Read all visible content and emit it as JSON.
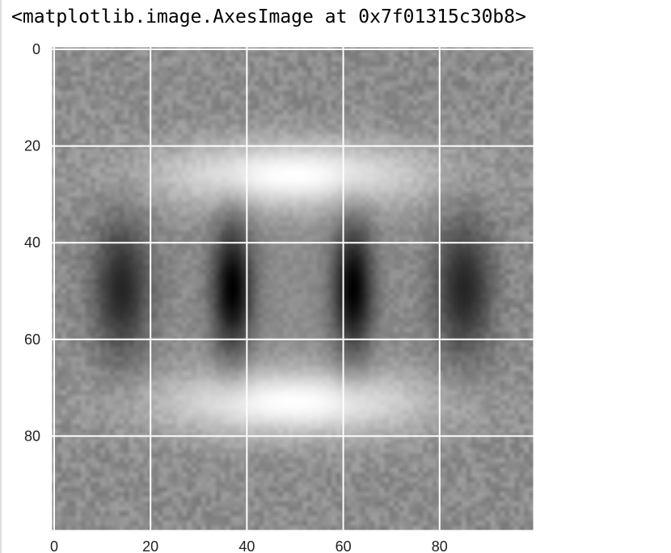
{
  "output_text": "<matplotlib.image.AxesImage at 0x7f01315c30b8>",
  "chart_data": {
    "type": "heatmap",
    "title": "",
    "xlabel": "",
    "ylabel": "",
    "grid": true,
    "colormap": "gray",
    "image_size": [
      100,
      100
    ],
    "xlim": [
      -0.5,
      99.5
    ],
    "ylim": [
      99.5,
      -0.5
    ],
    "y_axis_inverted": true,
    "x_ticks": [
      0,
      20,
      40,
      60,
      80
    ],
    "x_tick_labels": [
      "0",
      "20",
      "40",
      "60",
      "80"
    ],
    "y_ticks": [
      0,
      20,
      40,
      60,
      80
    ],
    "y_tick_labels": [
      "0",
      "20",
      "40",
      "60",
      "80"
    ],
    "background": "noise",
    "background_level": 0.55,
    "features": [
      {
        "name": "bright-band-top",
        "cx": 49.5,
        "cy": 26,
        "rx": 28,
        "ry": 7,
        "value": 1.0
      },
      {
        "name": "bright-band-bottom",
        "cx": 49.5,
        "cy": 73,
        "rx": 28,
        "ry": 7,
        "value": 1.0
      },
      {
        "name": "dark-blob-left",
        "cx": 37,
        "cy": 49.5,
        "rx": 4.2,
        "ry": 13,
        "value": 0.0
      },
      {
        "name": "dark-blob-right",
        "cx": 62,
        "cy": 49.5,
        "rx": 4.2,
        "ry": 13,
        "value": 0.0
      },
      {
        "name": "dark-lobe-far-left",
        "cx": 14,
        "cy": 49.5,
        "rx": 6,
        "ry": 14,
        "value": 0.15
      },
      {
        "name": "dark-lobe-far-right",
        "cx": 85,
        "cy": 49.5,
        "rx": 6,
        "ry": 14,
        "value": 0.15
      }
    ]
  },
  "colors": {
    "grid_line": "#ffffff",
    "axes_edge": "#ffffff",
    "tick_label": "#222222",
    "page_bg": "#ffffff"
  }
}
